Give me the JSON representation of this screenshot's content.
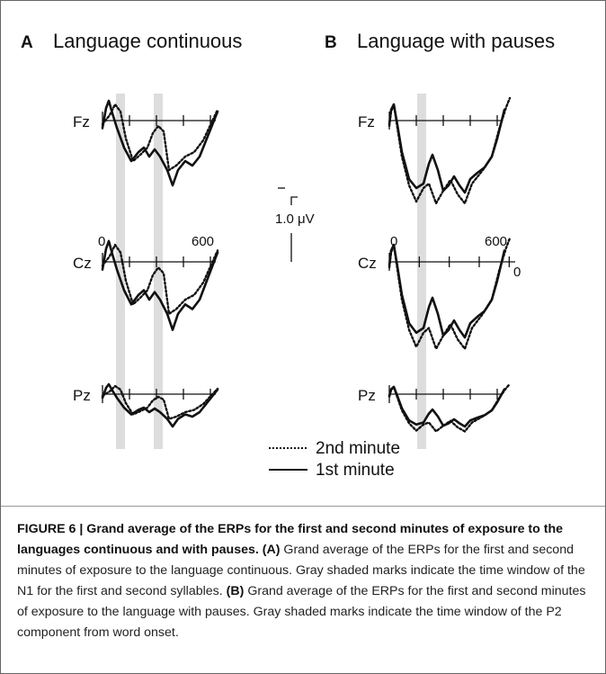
{
  "panels": [
    {
      "letter": "A",
      "title": "Language continuous",
      "electrodes": [
        "Fz",
        "Cz",
        "Pz"
      ],
      "time_labels": [
        "0",
        "600"
      ]
    },
    {
      "letter": "B",
      "title": "Language with pauses",
      "electrodes": [
        "Fz",
        "Cz",
        "Pz"
      ],
      "time_labels": [
        "0",
        "600",
        "0"
      ]
    }
  ],
  "scale_bar": "1.0 μV",
  "legend": [
    "2nd minute",
    "1st minute"
  ],
  "caption": {
    "title": "FIGURE 6 | Grand average of the ERPs for the first and second minutes of exposure to the languages continuous and with pauses.",
    "label_a": "(A)",
    "text_a": "Grand average of the ERPs for the first and second minutes of exposure to the language continuous. Gray shaded marks indicate the time window of the N1 for the first and second syllables.",
    "label_b": "(B)",
    "text_b": "Grand average of the ERPs for the first and second minutes of exposure to the language with pauses. Gray shaded marks indicate the time window of the P2 component from word onset."
  }
}
